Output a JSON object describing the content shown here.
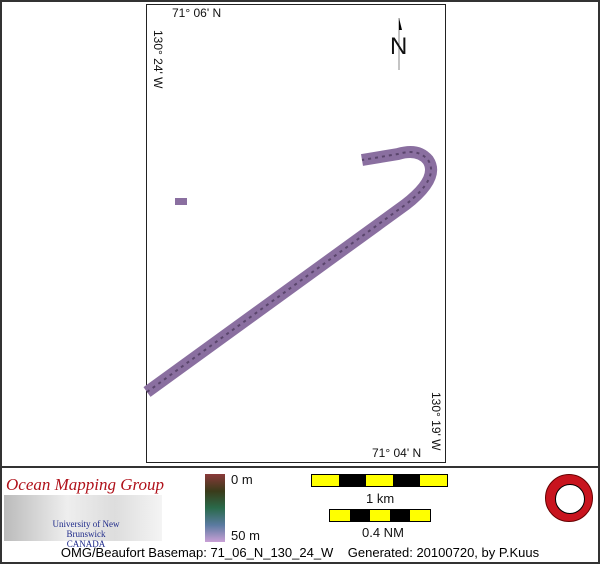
{
  "map": {
    "lat_top": "71° 06' N",
    "lon_left": "130° 24' W",
    "lat_bottom": "71° 04' N",
    "lon_right": "130° 19' W",
    "north_label": "N",
    "track_color": "#8a6fa0"
  },
  "legend": {
    "org": "Ocean Mapping Group",
    "university": "University of New Brunswick",
    "country": "CANADA",
    "depth_min": "0 m",
    "depth_max": "50 m",
    "scale_km": "1 km",
    "scale_nm": "0.4 NM"
  },
  "footer": {
    "title": "OMG/Beaufort Basemap: 71_06_N_130_24_W",
    "generated": "Generated: 20100720, by P.Kuus"
  }
}
